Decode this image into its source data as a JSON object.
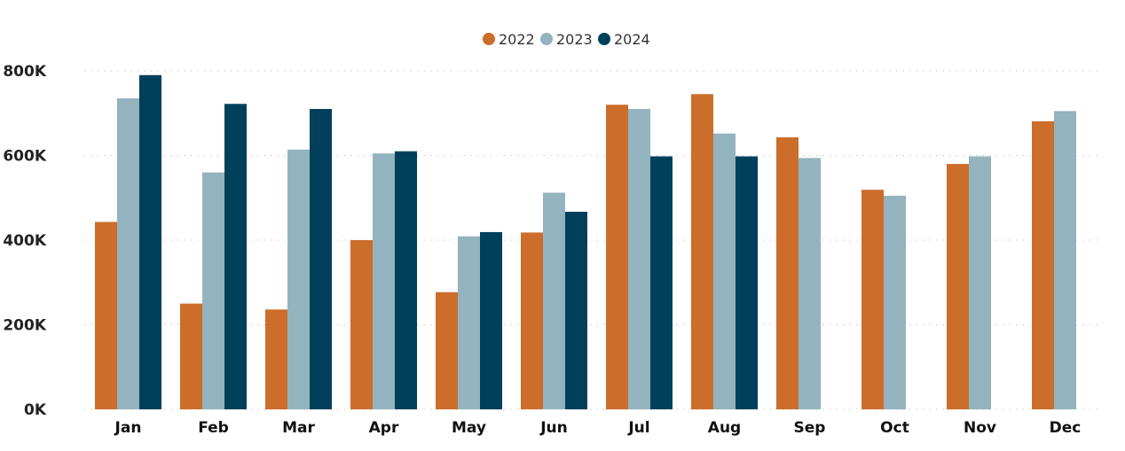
{
  "chart_data": {
    "type": "bar",
    "categories": [
      "Jan",
      "Feb",
      "Mar",
      "Apr",
      "May",
      "Jun",
      "Jul",
      "Aug",
      "Sep",
      "Oct",
      "Nov",
      "Dec"
    ],
    "series": [
      {
        "name": "2022",
        "color": "#CC6D2B",
        "values": [
          443000,
          250000,
          236000,
          400000,
          277000,
          418000,
          720000,
          745000,
          643000,
          519000,
          580000,
          681000
        ]
      },
      {
        "name": "2023",
        "color": "#93B3BE",
        "values": [
          735000,
          560000,
          614000,
          605000,
          409000,
          512000,
          710000,
          652000,
          594000,
          505000,
          598000,
          705000
        ]
      },
      {
        "name": "2024",
        "color": "#00405A",
        "values": [
          790000,
          722000,
          710000,
          610000,
          419000,
          467000,
          598000,
          598000,
          null,
          null,
          null,
          null
        ]
      }
    ],
    "ylim": [
      0,
      800000
    ],
    "yticks": [
      0,
      200000,
      400000,
      600000,
      800000
    ],
    "ytick_labels": [
      "0K",
      "200K",
      "400K",
      "600K",
      "800K"
    ],
    "grid": true,
    "legend": "top-center",
    "title": "",
    "xlabel": "",
    "ylabel": ""
  }
}
